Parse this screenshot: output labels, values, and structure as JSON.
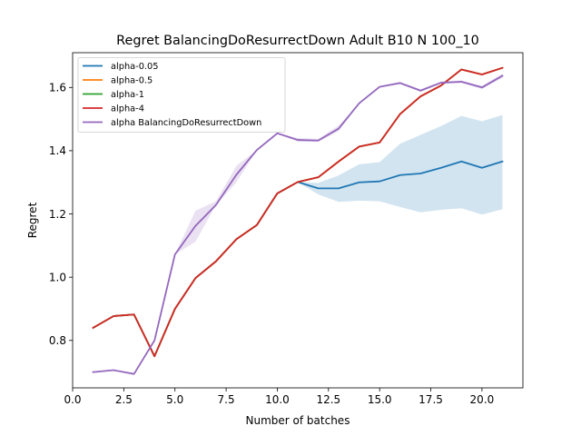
{
  "chart_data": {
    "type": "line",
    "title": "Regret BalancingDoResurrectDown Adult B10 N 100_10",
    "xlabel": "Number of batches",
    "ylabel": "Regret",
    "xlim": [
      0,
      22
    ],
    "ylim": [
      0.65,
      1.71
    ],
    "xticks": [
      0.0,
      2.5,
      5.0,
      7.5,
      10.0,
      12.5,
      15.0,
      17.5,
      20.0
    ],
    "xtick_labels": [
      "0.0",
      "2.5",
      "5.0",
      "7.5",
      "10.0",
      "12.5",
      "15.0",
      "17.5",
      "20.0"
    ],
    "yticks": [
      0.8,
      1.0,
      1.2,
      1.4,
      1.6
    ],
    "ytick_labels": [
      "0.8",
      "1.0",
      "1.2",
      "1.4",
      "1.6"
    ],
    "grid": false,
    "legend_position": "top-left",
    "x": [
      1,
      2,
      3,
      4,
      5,
      6,
      7,
      8,
      9,
      10,
      11,
      12,
      13,
      14,
      15,
      16,
      17,
      18,
      19,
      20,
      21
    ],
    "series": [
      {
        "name": "alpha-0.05",
        "color": "#1f77b4",
        "values": [
          0.84,
          0.877,
          0.882,
          0.75,
          0.9,
          0.997,
          1.05,
          1.12,
          1.165,
          1.265,
          1.301,
          1.281,
          1.281,
          1.3,
          1.303,
          1.323,
          1.328,
          1.346,
          1.366,
          1.346,
          1.366
        ],
        "band_lower": [
          0.84,
          0.877,
          0.882,
          0.75,
          0.9,
          0.997,
          1.05,
          1.12,
          1.165,
          1.265,
          1.301,
          1.262,
          1.238,
          1.242,
          1.24,
          1.222,
          1.205,
          1.213,
          1.218,
          1.198,
          1.215
        ],
        "band_upper": [
          0.84,
          0.877,
          0.882,
          0.75,
          0.9,
          0.997,
          1.05,
          1.12,
          1.165,
          1.265,
          1.301,
          1.298,
          1.322,
          1.357,
          1.364,
          1.422,
          1.45,
          1.478,
          1.51,
          1.493,
          1.513
        ]
      },
      {
        "name": "alpha-0.5",
        "color": "#ff7f0e",
        "values": [
          0.84,
          0.877,
          0.882,
          0.75,
          0.9,
          0.997,
          1.05,
          1.12,
          1.165,
          1.265,
          1.301,
          1.316,
          1.366,
          1.413,
          1.426,
          1.516,
          1.572,
          1.606,
          1.657,
          1.641,
          1.662
        ]
      },
      {
        "name": "alpha-1",
        "color": "#2ca02c",
        "values": [
          0.84,
          0.877,
          0.882,
          0.75,
          0.9,
          0.997,
          1.05,
          1.12,
          1.165,
          1.265,
          1.301,
          1.316,
          1.366,
          1.413,
          1.426,
          1.516,
          1.572,
          1.606,
          1.657,
          1.641,
          1.662
        ]
      },
      {
        "name": "alpha-4",
        "color": "#d62728",
        "values": [
          0.84,
          0.877,
          0.882,
          0.75,
          0.9,
          0.997,
          1.05,
          1.12,
          1.165,
          1.265,
          1.301,
          1.316,
          1.366,
          1.413,
          1.426,
          1.516,
          1.572,
          1.606,
          1.657,
          1.641,
          1.662
        ]
      },
      {
        "name": "alpha BalancingDoResurrectDown",
        "color": "#9467bd",
        "values": [
          0.7,
          0.706,
          0.694,
          0.8,
          1.072,
          1.162,
          1.228,
          1.324,
          1.402,
          1.455,
          1.434,
          1.432,
          1.47,
          1.55,
          1.602,
          1.614,
          1.59,
          1.615,
          1.618,
          1.6,
          1.637
        ],
        "band_lower": [
          0.7,
          0.706,
          0.694,
          0.8,
          1.072,
          1.112,
          1.228,
          1.3,
          1.402,
          1.455,
          1.428,
          1.428,
          1.462,
          1.55,
          1.6,
          1.61,
          1.586,
          1.612,
          1.614,
          1.595,
          1.63
        ],
        "band_upper": [
          0.7,
          0.706,
          0.694,
          0.8,
          1.072,
          1.21,
          1.24,
          1.352,
          1.402,
          1.455,
          1.44,
          1.438,
          1.48,
          1.55,
          1.604,
          1.618,
          1.594,
          1.619,
          1.622,
          1.605,
          1.644
        ]
      }
    ]
  }
}
